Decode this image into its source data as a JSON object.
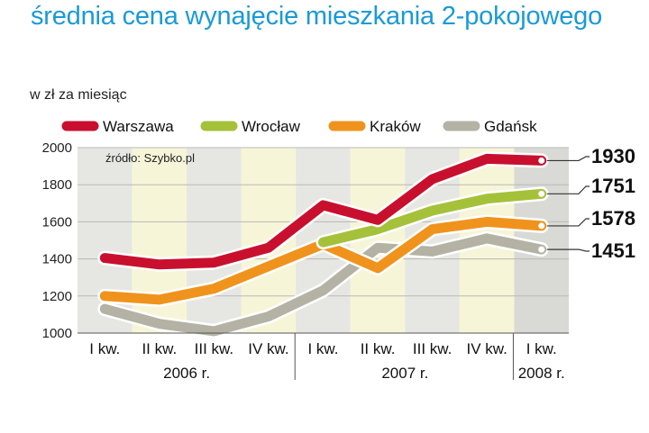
{
  "chart_data": {
    "type": "line",
    "title": "średnia cena wynajęcie mieszkania 2-pokojowego",
    "ylabel": "w zł za miesiąc",
    "source": "źródło: Szybko.pl",
    "ylim": [
      1000,
      2000
    ],
    "yticks": [
      1000,
      1200,
      1400,
      1600,
      1800,
      2000
    ],
    "categories": [
      "I kw.",
      "II kw.",
      "III kw.",
      "IV kw.",
      "I kw.",
      "II kw.",
      "III kw.",
      "IV kw.",
      "I kw."
    ],
    "years": [
      {
        "label": "2006 r.",
        "from": 0,
        "to": 3
      },
      {
        "label": "2007 r.",
        "from": 4,
        "to": 7
      },
      {
        "label": "2008 r.",
        "from": 8,
        "to": 8
      }
    ],
    "legend_position": "top",
    "series": [
      {
        "name": "Warszawa",
        "color": "#c8102e",
        "values": [
          1405,
          1370,
          1380,
          1460,
          1690,
          1610,
          1830,
          1940,
          1930
        ],
        "end_label": "1930"
      },
      {
        "name": "Wrocław",
        "color": "#a5c13a",
        "values": [
          null,
          null,
          null,
          null,
          1490,
          1560,
          1660,
          1725,
          1751
        ],
        "end_label": "1751"
      },
      {
        "name": "Kraków",
        "color": "#f0931c",
        "values": [
          1200,
          1180,
          1240,
          1360,
          1480,
          1350,
          1560,
          1600,
          1578
        ],
        "end_label": "1578"
      },
      {
        "name": "Gdańsk",
        "color": "#b3b2a4",
        "values": [
          1130,
          1050,
          1010,
          1090,
          1230,
          1460,
          1440,
          1510,
          1451
        ],
        "end_label": "1451"
      }
    ],
    "grid": true
  }
}
